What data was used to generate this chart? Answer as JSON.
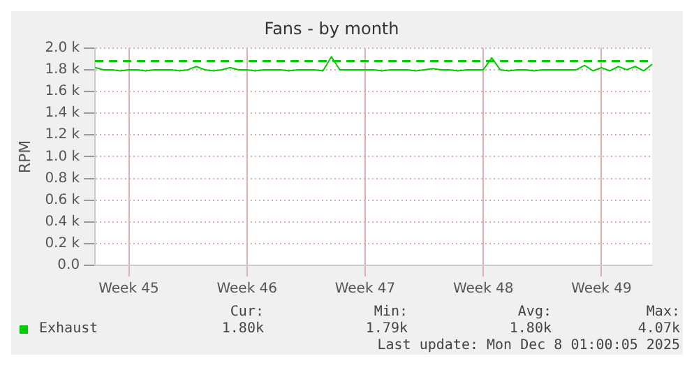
{
  "chart_data": {
    "type": "line",
    "title": "Fans - by month",
    "ylabel": "RPM",
    "categories": [
      null,
      null,
      null,
      null,
      "Week 45",
      null,
      null,
      null,
      null,
      null,
      null,
      null,
      null,
      null,
      null,
      null,
      null,
      null,
      "Week 46",
      null,
      null,
      null,
      null,
      null,
      null,
      null,
      null,
      null,
      null,
      null,
      null,
      null,
      "Week 47",
      null,
      null,
      null,
      null,
      null,
      null,
      null,
      null,
      null,
      null,
      null,
      null,
      null,
      "Week 48",
      null,
      null,
      null,
      null,
      null,
      null,
      null,
      null,
      null,
      null,
      null,
      null,
      null,
      "Week 49",
      null,
      null,
      null,
      null,
      null,
      null
    ],
    "series": [
      {
        "name": "Exhaust",
        "color": "#00cc00",
        "values": [
          1820,
          1800,
          1800,
          1790,
          1800,
          1800,
          1790,
          1800,
          1800,
          1800,
          1790,
          1800,
          1830,
          1800,
          1790,
          1800,
          1820,
          1800,
          1800,
          1790,
          1800,
          1800,
          1800,
          1790,
          1800,
          1800,
          1800,
          1790,
          1920,
          1800,
          1800,
          1800,
          1800,
          1800,
          1790,
          1800,
          1800,
          1800,
          1790,
          1800,
          1810,
          1800,
          1800,
          1790,
          1800,
          1800,
          1800,
          1910,
          1800,
          1790,
          1800,
          1800,
          1790,
          1800,
          1800,
          1800,
          1800,
          1800,
          1840,
          1790,
          1820,
          1790,
          1830,
          1800,
          1830,
          1790,
          1850
        ]
      }
    ],
    "ylim": [
      0,
      2000
    ],
    "yticks": [
      {
        "value": 0,
        "label": "0.0"
      },
      {
        "value": 200,
        "label": "0.2 k"
      },
      {
        "value": 400,
        "label": "0.4 k"
      },
      {
        "value": 600,
        "label": "0.6 k"
      },
      {
        "value": 800,
        "label": "0.8 k"
      },
      {
        "value": 1000,
        "label": "1.0 k"
      },
      {
        "value": 1200,
        "label": "1.2 k"
      },
      {
        "value": 1400,
        "label": "1.4 k"
      },
      {
        "value": 1600,
        "label": "1.6 k"
      },
      {
        "value": 1800,
        "label": "1.8 k"
      },
      {
        "value": 2000,
        "label": "2.0 k"
      }
    ],
    "ref_lines": [
      {
        "axis": "y",
        "value": 1880,
        "color": "#00cc00",
        "line_style": "dashed"
      }
    ],
    "grid": true,
    "legend": "bottom",
    "marker": "none",
    "line_style": "solid",
    "annotations": [
      "Cur:",
      "Min:",
      "Avg:",
      "Max:",
      "1.80k",
      "1.79k",
      "1.80k",
      "4.07k",
      "Last update: Mon Dec  8 01:00:05 2025"
    ]
  }
}
